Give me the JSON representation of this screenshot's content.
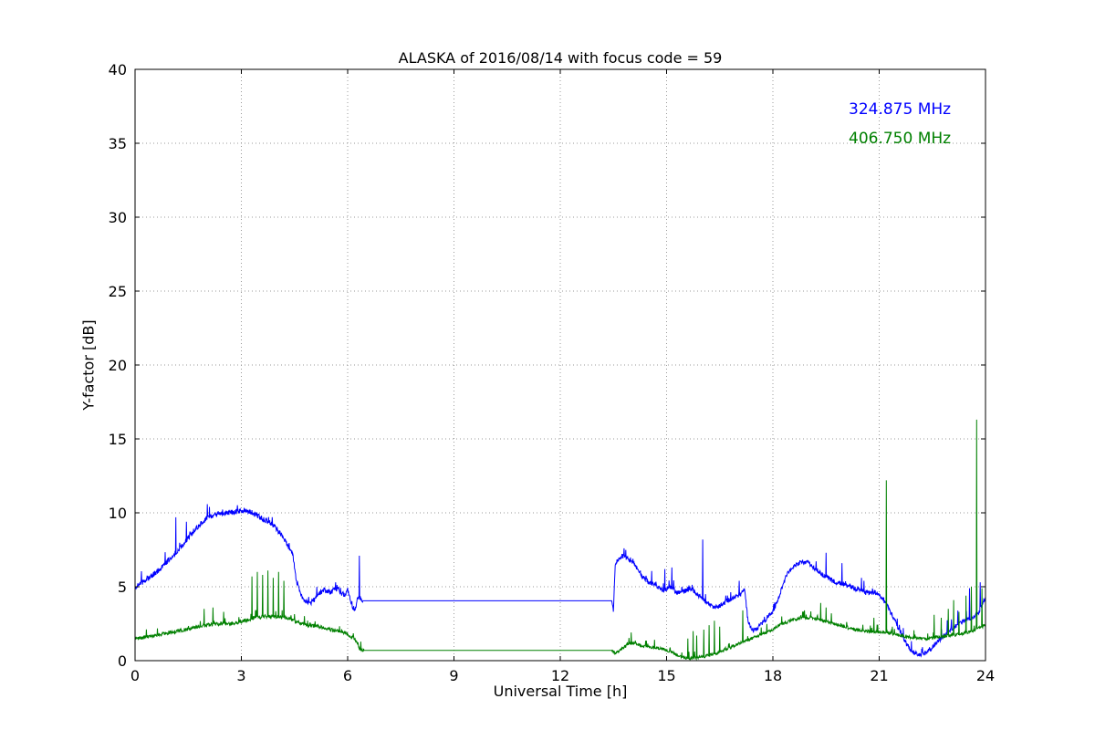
{
  "chart_data": {
    "type": "line",
    "title": "ALASKA of 2016/08/14 with focus code = 59",
    "xlabel": "Universal Time [h]",
    "ylabel": "Y-factor [dB]",
    "xlim": [
      0,
      24
    ],
    "ylim": [
      0,
      40
    ],
    "xticks": [
      0,
      3,
      6,
      9,
      12,
      15,
      18,
      21,
      24
    ],
    "yticks": [
      0,
      5,
      10,
      15,
      20,
      25,
      30,
      35,
      40
    ],
    "grid": "dotted",
    "legend_position": "upper-right-text-only",
    "series": [
      {
        "name": "324.875 MHz",
        "color": "#0000ff",
        "keypoints": [
          [
            0,
            4.9
          ],
          [
            0.2,
            5.3
          ],
          [
            0.5,
            5.8
          ],
          [
            0.8,
            6.4
          ],
          [
            1.1,
            7.2
          ],
          [
            1.4,
            8.0
          ],
          [
            1.7,
            8.9
          ],
          [
            2.0,
            9.6
          ],
          [
            2.3,
            9.9
          ],
          [
            2.6,
            10.0
          ],
          [
            2.9,
            10.1
          ],
          [
            3.1,
            10.2
          ],
          [
            3.3,
            10.0
          ],
          [
            3.6,
            9.6
          ],
          [
            3.9,
            9.2
          ],
          [
            4.1,
            8.6
          ],
          [
            4.3,
            7.8
          ],
          [
            4.45,
            7.2
          ],
          [
            4.55,
            5.4
          ],
          [
            4.7,
            4.4
          ],
          [
            4.9,
            3.8
          ],
          [
            5.1,
            4.2
          ],
          [
            5.3,
            4.8
          ],
          [
            5.5,
            4.6
          ],
          [
            5.7,
            4.9
          ],
          [
            5.9,
            4.4
          ],
          [
            6.0,
            4.8
          ],
          [
            6.1,
            3.8
          ],
          [
            6.2,
            3.4
          ],
          [
            6.3,
            4.3
          ],
          [
            6.4,
            4.05
          ],
          [
            13.45,
            4.05
          ],
          [
            13.5,
            3.4
          ],
          [
            13.55,
            6.6
          ],
          [
            13.75,
            7.1
          ],
          [
            13.9,
            6.9
          ],
          [
            14.1,
            6.5
          ],
          [
            14.3,
            5.7
          ],
          [
            14.5,
            5.3
          ],
          [
            14.7,
            5.1
          ],
          [
            14.9,
            4.7
          ],
          [
            15.1,
            5.0
          ],
          [
            15.3,
            4.6
          ],
          [
            15.5,
            4.7
          ],
          [
            15.7,
            4.9
          ],
          [
            15.9,
            4.4
          ],
          [
            16.1,
            4.0
          ],
          [
            16.3,
            3.6
          ],
          [
            16.5,
            3.7
          ],
          [
            16.7,
            4.0
          ],
          [
            16.9,
            4.3
          ],
          [
            17.1,
            4.5
          ],
          [
            17.2,
            4.9
          ],
          [
            17.3,
            2.6
          ],
          [
            17.45,
            2.0
          ],
          [
            17.6,
            2.3
          ],
          [
            17.8,
            2.8
          ],
          [
            18.0,
            3.3
          ],
          [
            18.2,
            4.5
          ],
          [
            18.4,
            5.9
          ],
          [
            18.6,
            6.4
          ],
          [
            18.8,
            6.7
          ],
          [
            19.0,
            6.6
          ],
          [
            19.2,
            6.2
          ],
          [
            19.4,
            5.8
          ],
          [
            19.6,
            5.5
          ],
          [
            19.8,
            5.3
          ],
          [
            20.0,
            5.2
          ],
          [
            20.3,
            4.9
          ],
          [
            20.6,
            4.6
          ],
          [
            20.9,
            4.6
          ],
          [
            21.1,
            4.2
          ],
          [
            21.3,
            3.4
          ],
          [
            21.5,
            2.4
          ],
          [
            21.7,
            1.4
          ],
          [
            21.9,
            0.7
          ],
          [
            22.1,
            0.4
          ],
          [
            22.3,
            0.5
          ],
          [
            22.5,
            0.9
          ],
          [
            22.7,
            1.4
          ],
          [
            23.0,
            2.1
          ],
          [
            23.3,
            2.6
          ],
          [
            23.6,
            2.9
          ],
          [
            23.8,
            3.2
          ],
          [
            24,
            4.3
          ]
        ],
        "noise_regions": [
          [
            0,
            6.42,
            0.18
          ],
          [
            6.42,
            13.45,
            0.0
          ],
          [
            13.45,
            24,
            0.16
          ]
        ],
        "spikes": [
          [
            1.15,
            9.7
          ],
          [
            1.45,
            9.4
          ],
          [
            2.1,
            10.4
          ],
          [
            6.33,
            7.1
          ],
          [
            13.8,
            7.6
          ],
          [
            14.95,
            6.2
          ],
          [
            15.15,
            6.3
          ],
          [
            16.02,
            8.2
          ],
          [
            17.05,
            5.4
          ],
          [
            19.5,
            7.3
          ],
          [
            19.95,
            6.6
          ],
          [
            20.5,
            5.6
          ],
          [
            23.55,
            4.9
          ],
          [
            23.85,
            5.3
          ]
        ]
      },
      {
        "name": "406.750 MHz",
        "color": "#008000",
        "keypoints": [
          [
            0,
            1.5
          ],
          [
            0.4,
            1.6
          ],
          [
            0.8,
            1.8
          ],
          [
            1.2,
            2.0
          ],
          [
            1.6,
            2.2
          ],
          [
            2.0,
            2.4
          ],
          [
            2.4,
            2.5
          ],
          [
            2.8,
            2.5
          ],
          [
            3.1,
            2.7
          ],
          [
            3.4,
            2.9
          ],
          [
            3.7,
            3.0
          ],
          [
            4.0,
            3.0
          ],
          [
            4.3,
            2.9
          ],
          [
            4.6,
            2.6
          ],
          [
            4.9,
            2.4
          ],
          [
            5.2,
            2.3
          ],
          [
            5.5,
            2.1
          ],
          [
            5.8,
            2.0
          ],
          [
            6.0,
            1.8
          ],
          [
            6.2,
            1.5
          ],
          [
            6.35,
            0.75
          ],
          [
            6.45,
            0.7
          ],
          [
            13.45,
            0.7
          ],
          [
            13.55,
            0.45
          ],
          [
            13.7,
            0.7
          ],
          [
            13.9,
            1.1
          ],
          [
            14.1,
            1.2
          ],
          [
            14.3,
            1.0
          ],
          [
            14.6,
            0.9
          ],
          [
            14.9,
            0.8
          ],
          [
            15.1,
            0.6
          ],
          [
            15.3,
            0.4
          ],
          [
            15.5,
            0.2
          ],
          [
            15.7,
            0.15
          ],
          [
            15.9,
            0.2
          ],
          [
            16.1,
            0.3
          ],
          [
            16.4,
            0.5
          ],
          [
            16.7,
            0.8
          ],
          [
            17.0,
            1.1
          ],
          [
            17.3,
            1.4
          ],
          [
            17.6,
            1.7
          ],
          [
            17.9,
            2.0
          ],
          [
            18.2,
            2.4
          ],
          [
            18.5,
            2.7
          ],
          [
            18.8,
            2.9
          ],
          [
            19.1,
            2.9
          ],
          [
            19.4,
            2.7
          ],
          [
            19.7,
            2.5
          ],
          [
            20.0,
            2.3
          ],
          [
            20.3,
            2.1
          ],
          [
            20.6,
            2.0
          ],
          [
            20.9,
            1.95
          ],
          [
            21.2,
            1.9
          ],
          [
            21.5,
            1.75
          ],
          [
            21.8,
            1.6
          ],
          [
            22.1,
            1.5
          ],
          [
            22.4,
            1.5
          ],
          [
            22.7,
            1.6
          ],
          [
            23.0,
            1.7
          ],
          [
            23.3,
            1.8
          ],
          [
            23.6,
            2.0
          ],
          [
            23.9,
            2.3
          ],
          [
            24,
            2.4
          ]
        ],
        "noise_regions": [
          [
            0,
            6.45,
            0.12
          ],
          [
            6.45,
            13.45,
            0.0
          ],
          [
            13.45,
            24,
            0.1
          ]
        ],
        "spikes": [
          [
            1.95,
            3.5
          ],
          [
            2.2,
            3.6
          ],
          [
            2.5,
            3.3
          ],
          [
            3.3,
            5.7
          ],
          [
            3.45,
            6.0
          ],
          [
            3.6,
            5.8
          ],
          [
            3.75,
            6.1
          ],
          [
            3.9,
            5.6
          ],
          [
            4.05,
            6.0
          ],
          [
            4.2,
            5.4
          ],
          [
            14.0,
            1.9
          ],
          [
            15.6,
            1.5
          ],
          [
            15.75,
            2.0
          ],
          [
            15.85,
            1.7
          ],
          [
            16.05,
            2.1
          ],
          [
            16.2,
            2.4
          ],
          [
            16.35,
            2.7
          ],
          [
            16.5,
            2.3
          ],
          [
            17.15,
            3.4
          ],
          [
            19.35,
            3.9
          ],
          [
            19.5,
            3.6
          ],
          [
            19.65,
            3.2
          ],
          [
            20.85,
            2.9
          ],
          [
            21.2,
            12.2
          ],
          [
            22.55,
            3.1
          ],
          [
            22.75,
            2.9
          ],
          [
            22.95,
            3.5
          ],
          [
            23.1,
            4.1
          ],
          [
            23.25,
            3.3
          ],
          [
            23.45,
            4.4
          ],
          [
            23.6,
            5.0
          ],
          [
            23.75,
            16.3
          ],
          [
            23.9,
            4.9
          ]
        ]
      }
    ]
  }
}
